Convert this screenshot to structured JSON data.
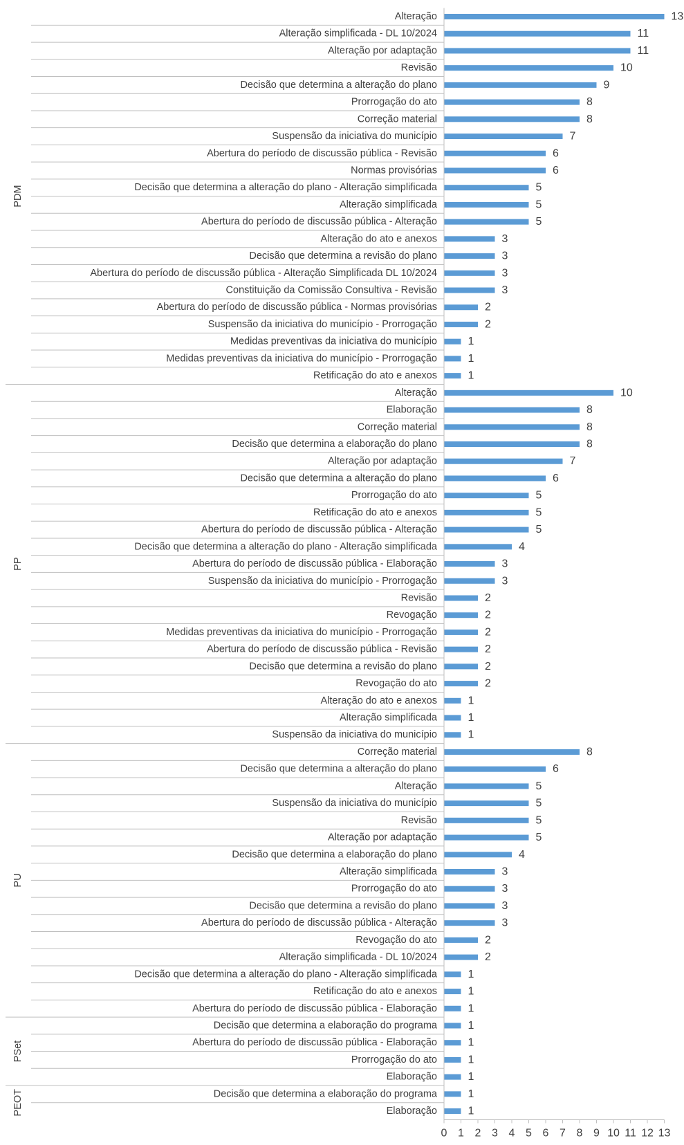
{
  "chart_data": {
    "type": "bar",
    "orientation": "horizontal",
    "title": "",
    "xlabel": "",
    "ylabel": "",
    "xlim": [
      0,
      13
    ],
    "x_ticks": [
      0,
      1,
      2,
      3,
      4,
      5,
      6,
      7,
      8,
      9,
      10,
      11,
      12,
      13
    ],
    "bar_color": "#5b9bd5",
    "grid": false,
    "legend": "none",
    "groups": [
      {
        "name": "PDM",
        "items": [
          {
            "label": "Alteração",
            "value": 13
          },
          {
            "label": "Alteração simplificada - DL 10/2024",
            "value": 11
          },
          {
            "label": "Alteração por adaptação",
            "value": 11
          },
          {
            "label": "Revisão",
            "value": 10
          },
          {
            "label": "Decisão que determina a alteração do plano",
            "value": 9
          },
          {
            "label": "Prorrogação do ato",
            "value": 8
          },
          {
            "label": "Correção material",
            "value": 8
          },
          {
            "label": "Suspensão da iniciativa do município",
            "value": 7
          },
          {
            "label": "Abertura do período de discussão pública - Revisão",
            "value": 6
          },
          {
            "label": "Normas provisórias",
            "value": 6
          },
          {
            "label": "Decisão que determina a alteração do plano - Alteração simplificada",
            "value": 5
          },
          {
            "label": "Alteração simplificada",
            "value": 5
          },
          {
            "label": "Abertura do período de discussão pública - Alteração",
            "value": 5
          },
          {
            "label": "Alteração do ato e anexos",
            "value": 3
          },
          {
            "label": "Decisão que determina a revisão do plano",
            "value": 3
          },
          {
            "label": "Abertura do período de discussão pública - Alteração Simplificada DL 10/2024",
            "value": 3
          },
          {
            "label": "Constituição da Comissão Consultiva - Revisão",
            "value": 3
          },
          {
            "label": "Abertura do período de discussão pública - Normas provisórias",
            "value": 2
          },
          {
            "label": "Suspensão da iniciativa do município - Prorrogação",
            "value": 2
          },
          {
            "label": "Medidas preventivas da iniciativa do município",
            "value": 1
          },
          {
            "label": "Medidas preventivas da iniciativa do município - Prorrogação",
            "value": 1
          },
          {
            "label": "Retificação do ato e anexos",
            "value": 1
          }
        ]
      },
      {
        "name": "PP",
        "items": [
          {
            "label": "Alteração",
            "value": 10
          },
          {
            "label": "Elaboração",
            "value": 8
          },
          {
            "label": "Correção material",
            "value": 8
          },
          {
            "label": "Decisão que determina a elaboração do plano",
            "value": 8
          },
          {
            "label": "Alteração por adaptação",
            "value": 7
          },
          {
            "label": "Decisão que determina a alteração do plano",
            "value": 6
          },
          {
            "label": "Prorrogação do ato",
            "value": 5
          },
          {
            "label": "Retificação do ato e anexos",
            "value": 5
          },
          {
            "label": "Abertura do período de discussão pública - Alteração",
            "value": 5
          },
          {
            "label": "Decisão que determina a alteração do plano - Alteração simplificada",
            "value": 4
          },
          {
            "label": "Abertura do período de discussão pública - Elaboração",
            "value": 3
          },
          {
            "label": "Suspensão da iniciativa do município - Prorrogação",
            "value": 3
          },
          {
            "label": "Revisão",
            "value": 2
          },
          {
            "label": "Revogação",
            "value": 2
          },
          {
            "label": "Medidas preventivas da iniciativa do município - Prorrogação",
            "value": 2
          },
          {
            "label": "Abertura do período de discussão pública - Revisão",
            "value": 2
          },
          {
            "label": "Decisão que determina a revisão do plano",
            "value": 2
          },
          {
            "label": "Revogação do ato",
            "value": 2
          },
          {
            "label": "Alteração do ato e anexos",
            "value": 1
          },
          {
            "label": "Alteração simplificada",
            "value": 1
          },
          {
            "label": "Suspensão da iniciativa do município",
            "value": 1
          }
        ]
      },
      {
        "name": "PU",
        "items": [
          {
            "label": "Correção material",
            "value": 8
          },
          {
            "label": "Decisão que determina a alteração do plano",
            "value": 6
          },
          {
            "label": "Alteração",
            "value": 5
          },
          {
            "label": "Suspensão da iniciativa do município",
            "value": 5
          },
          {
            "label": "Revisão",
            "value": 5
          },
          {
            "label": "Alteração por adaptação",
            "value": 5
          },
          {
            "label": "Decisão que determina a elaboração do plano",
            "value": 4
          },
          {
            "label": "Alteração simplificada",
            "value": 3
          },
          {
            "label": "Prorrogação do ato",
            "value": 3
          },
          {
            "label": "Decisão que determina a revisão do plano",
            "value": 3
          },
          {
            "label": "Abertura do período de discussão pública - Alteração",
            "value": 3
          },
          {
            "label": "Revogação do ato",
            "value": 2
          },
          {
            "label": "Alteração simplificada - DL 10/2024",
            "value": 2
          },
          {
            "label": "Decisão que determina a alteração do plano - Alteração simplificada",
            "value": 1
          },
          {
            "label": "Retificação do ato e anexos",
            "value": 1
          },
          {
            "label": "Abertura do período de discussão pública - Elaboração",
            "value": 1
          }
        ]
      },
      {
        "name": "PSet",
        "items": [
          {
            "label": "Decisão que determina a elaboração do programa",
            "value": 1
          },
          {
            "label": "Abertura do período de discussão pública - Elaboração",
            "value": 1
          },
          {
            "label": "Prorrogação do ato",
            "value": 1
          },
          {
            "label": "Elaboração",
            "value": 1
          }
        ]
      },
      {
        "name": "PEOT",
        "items": [
          {
            "label": "Decisão que determina a elaboração do programa",
            "value": 1
          },
          {
            "label": "Elaboração",
            "value": 1
          }
        ]
      }
    ]
  }
}
